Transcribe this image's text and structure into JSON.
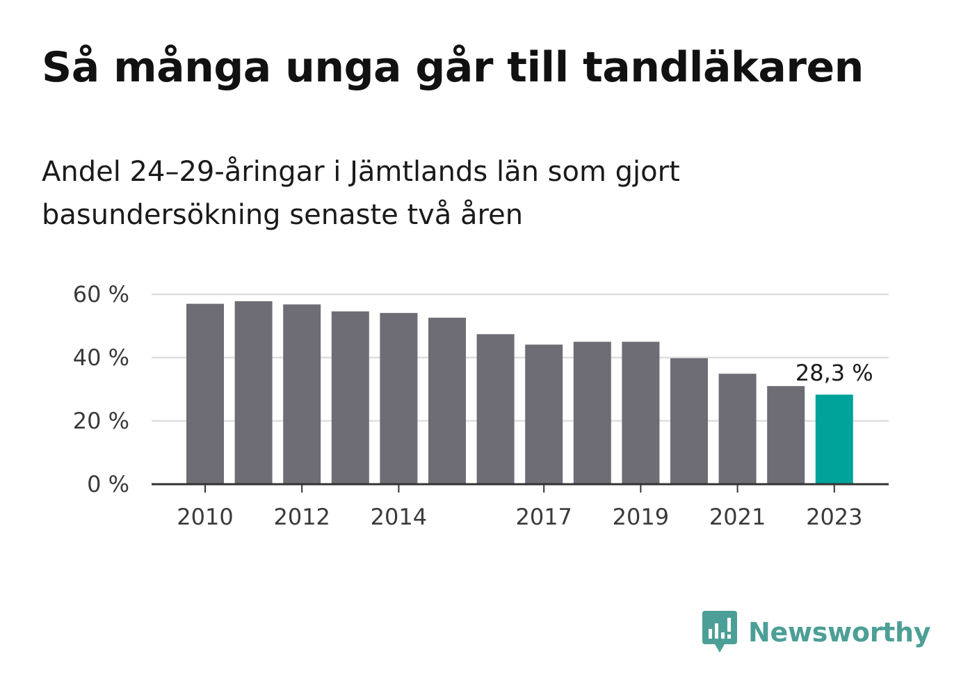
{
  "header": {
    "title": "Så många unga går till tandläkaren",
    "subtitle": "Andel 24–29-åringar i Jämtlands län som gjort basundersökning senaste två åren"
  },
  "chart_data": {
    "type": "bar",
    "categories": [
      "2010",
      "2011",
      "2012",
      "2013",
      "2014",
      "2015",
      "2016",
      "2017",
      "2018",
      "2019",
      "2020",
      "2021",
      "2022",
      "2023"
    ],
    "values": [
      57.0,
      57.8,
      56.8,
      54.6,
      54.1,
      52.6,
      47.4,
      44.1,
      45.0,
      45.0,
      39.8,
      34.9,
      31.0,
      28.3
    ],
    "x_tick_labels": [
      "2010",
      "",
      "2012",
      "",
      "2014",
      "",
      "",
      "2017",
      "",
      "2019",
      "",
      "2021",
      "",
      "2023"
    ],
    "y_ticks": [
      0,
      20,
      40,
      60
    ],
    "y_tick_labels": [
      "0 %",
      "20 %",
      "40 %",
      "60 %"
    ],
    "ylim": [
      0,
      60
    ],
    "xlabel": "",
    "ylabel": "",
    "grid": true,
    "highlight_index": 13,
    "highlight_label": "28,3 %",
    "colors": {
      "bar": "#6e6d75",
      "highlight": "#00a399",
      "grid": "#dedede",
      "axis": "#333333"
    }
  },
  "brand": {
    "name": "Newsworthy",
    "logo_icon": "newsworthy-logo-icon",
    "color": "#4c9f96"
  }
}
